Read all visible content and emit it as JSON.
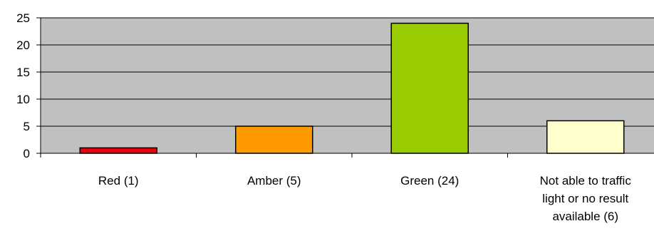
{
  "chart_data": {
    "type": "bar",
    "categories": [
      "Red (1)",
      "Amber (5)",
      "Green (24)",
      "Not able to traffic light or no result available (6)"
    ],
    "category_lines": [
      [
        "Red (1)"
      ],
      [
        "Amber (5)"
      ],
      [
        "Green (24)"
      ],
      [
        "Not able to traffic",
        "light or no result",
        "available (6)"
      ]
    ],
    "values": [
      1,
      5,
      24,
      6
    ],
    "bar_colors": [
      "#e8000b",
      "#ff9900",
      "#99cc00",
      "#ffffcc"
    ],
    "plot_background": "#c0c0c0",
    "title": "",
    "xlabel": "",
    "ylabel": "",
    "ylim": [
      0,
      25
    ],
    "yticks": [
      0,
      5,
      10,
      15,
      20,
      25
    ],
    "grid": true,
    "legend": "none"
  }
}
